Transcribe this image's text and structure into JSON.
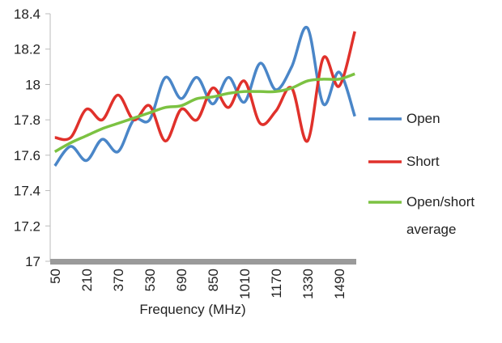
{
  "chart_data": {
    "type": "line",
    "x_label": "Frequency (MHz)",
    "categories": [
      50,
      null,
      210,
      null,
      370,
      null,
      530,
      null,
      690,
      null,
      850,
      null,
      1010,
      null,
      1170,
      null,
      1330,
      null,
      1490,
      null
    ],
    "series": [
      {
        "name": "Open",
        "color": "#4a86c8",
        "values": [
          17.54,
          17.65,
          17.57,
          17.69,
          17.62,
          17.8,
          17.8,
          18.04,
          17.92,
          18.04,
          17.89,
          18.04,
          17.9,
          18.12,
          17.97,
          18.1,
          18.32,
          17.89,
          18.07,
          17.82
        ]
      },
      {
        "name": "Short",
        "color": "#e0312b",
        "values": [
          17.7,
          17.7,
          17.86,
          17.8,
          17.94,
          17.8,
          17.88,
          17.68,
          17.86,
          17.8,
          17.98,
          17.87,
          18.02,
          17.78,
          17.85,
          17.98,
          17.68,
          18.15,
          17.99,
          18.3
        ]
      },
      {
        "name": "Open/short average",
        "color": "#7cc242",
        "values": [
          17.62,
          17.67,
          17.71,
          17.75,
          17.78,
          17.81,
          17.84,
          17.87,
          17.88,
          17.92,
          17.93,
          17.95,
          17.96,
          17.96,
          17.96,
          17.98,
          18.02,
          18.03,
          18.03,
          18.06
        ]
      }
    ],
    "ylim": [
      17,
      18.4
    ],
    "yticks": [
      17,
      17.2,
      17.4,
      17.6,
      17.8,
      18,
      18.2,
      18.4
    ],
    "grid": false,
    "legend": "right"
  }
}
